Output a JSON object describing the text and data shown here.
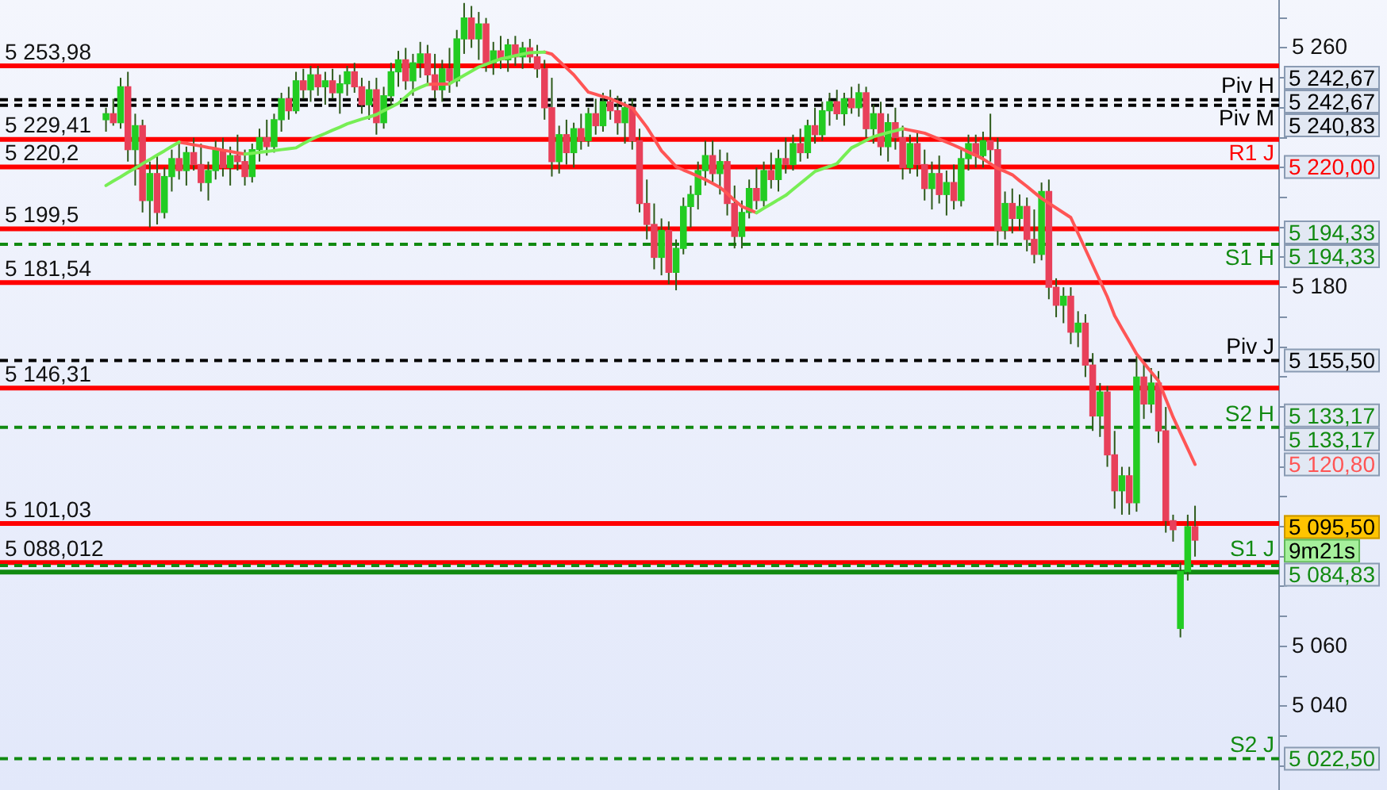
{
  "chart_data": {
    "type": "candlestick",
    "categories": [
      null,
      null,
      null,
      null,
      null,
      null,
      null,
      null,
      null,
      null,
      null,
      null,
      null,
      null,
      null,
      null,
      null,
      null,
      null,
      null,
      null,
      null,
      null,
      null,
      null,
      null,
      null,
      null,
      null,
      null,
      null,
      null,
      null,
      null,
      null,
      null,
      null,
      null,
      null,
      null,
      null,
      null,
      null,
      null,
      null,
      null,
      null,
      null,
      null,
      null,
      null,
      null,
      null,
      null,
      null,
      null,
      null,
      null,
      null,
      null,
      null,
      null,
      null,
      null,
      null,
      null,
      null,
      null,
      null,
      null,
      null,
      null,
      null,
      null,
      null,
      null,
      null,
      null,
      null,
      null,
      null,
      null,
      null,
      null,
      null,
      null,
      null,
      null,
      null,
      null,
      null,
      null,
      null,
      null,
      null,
      null,
      null,
      null,
      null,
      null,
      null,
      null,
      null,
      null,
      null,
      null,
      null,
      null,
      null,
      null,
      null,
      null,
      null,
      null,
      null,
      null,
      null,
      null,
      null,
      null,
      null,
      null,
      null,
      null,
      null,
      null,
      null,
      null,
      null,
      null,
      null,
      null,
      null,
      null,
      null,
      null,
      null,
      null,
      null,
      null,
      null,
      null,
      null,
      null,
      null,
      null,
      null,
      null,
      null,
      null,
      null,
      null,
      null,
      null,
      null,
      null,
      null,
      null,
      null,
      null,
      null,
      null,
      null,
      null,
      null,
      null,
      null,
      null,
      null,
      null,
      null,
      null,
      null,
      null,
      null
    ],
    "color": "#2d5a1a",
    "ohlc": [
      null,
      null,
      null,
      null,
      null,
      null,
      null,
      null,
      null,
      null,
      null,
      null,
      null,
      null,
      [
        5236,
        5240,
        5232,
        5238
      ],
      [
        5238,
        5243,
        5234,
        5235
      ],
      [
        5235,
        5250,
        5233,
        5247
      ],
      [
        5247,
        5252,
        5222,
        5226
      ],
      [
        5226,
        5238,
        5214,
        5234
      ],
      [
        5234,
        5236,
        5205,
        5209
      ],
      [
        5209,
        5222,
        5200,
        5218
      ],
      [
        5218,
        5224,
        5201,
        5205
      ],
      [
        5205,
        5220,
        5203,
        5217
      ],
      [
        5217,
        5226,
        5212,
        5223
      ],
      [
        5223,
        5228,
        5216,
        5219
      ],
      [
        5219,
        5227,
        5214,
        5225
      ],
      [
        5225,
        5230,
        5219,
        5221
      ],
      [
        5221,
        5228,
        5212,
        5215
      ],
      [
        5215,
        5222,
        5209,
        5219
      ],
      [
        5219,
        5229,
        5216,
        5226
      ],
      [
        5226,
        5230,
        5217,
        5220
      ],
      [
        5220,
        5227,
        5214,
        5224
      ],
      [
        5224,
        5231,
        5219,
        5222
      ],
      [
        5222,
        5226,
        5214,
        5217
      ],
      [
        5217,
        5228,
        5215,
        5226
      ],
      [
        5226,
        5233,
        5222,
        5230
      ],
      [
        5230,
        5236,
        5224,
        5227
      ],
      [
        5227,
        5238,
        5225,
        5236
      ],
      [
        5236,
        5245,
        5232,
        5243
      ],
      [
        5243,
        5247,
        5236,
        5239
      ],
      [
        5239,
        5252,
        5238,
        5249
      ],
      [
        5249,
        5253,
        5243,
        5246
      ],
      [
        5246,
        5254,
        5242,
        5251
      ],
      [
        5251,
        5254,
        5244,
        5247
      ],
      [
        5247,
        5252,
        5241,
        5249
      ],
      [
        5249,
        5253,
        5243,
        5245
      ],
      [
        5245,
        5251,
        5238,
        5248
      ],
      [
        5248,
        5254,
        5244,
        5252
      ],
      [
        5252,
        5255,
        5245,
        5247
      ],
      [
        5247,
        5250,
        5238,
        5241
      ],
      [
        5241,
        5249,
        5236,
        5246
      ],
      [
        5246,
        5250,
        5231,
        5235
      ],
      [
        5235,
        5247,
        5233,
        5244
      ],
      [
        5244,
        5255,
        5241,
        5252
      ],
      [
        5252,
        5259,
        5247,
        5256
      ],
      [
        5256,
        5260,
        5246,
        5249
      ],
      [
        5249,
        5258,
        5244,
        5255
      ],
      [
        5255,
        5262,
        5250,
        5258
      ],
      [
        5258,
        5261,
        5248,
        5251
      ],
      [
        5251,
        5258,
        5243,
        5246
      ],
      [
        5246,
        5256,
        5242,
        5253
      ],
      [
        5253,
        5260,
        5245,
        5249
      ],
      [
        5249,
        5266,
        5247,
        5263
      ],
      [
        5263,
        5275,
        5258,
        5270
      ],
      [
        5270,
        5274,
        5260,
        5263
      ],
      [
        5263,
        5272,
        5256,
        5268
      ],
      [
        5268,
        5270,
        5252,
        5255
      ],
      [
        5255,
        5262,
        5251,
        5259
      ],
      [
        5259,
        5264,
        5253,
        5256
      ],
      [
        5256,
        5263,
        5252,
        5261
      ],
      [
        5261,
        5264,
        5254,
        5257
      ],
      [
        5257,
        5262,
        5253,
        5260
      ],
      [
        5260,
        5263,
        5255,
        5257
      ],
      [
        5257,
        5261,
        5250,
        5253
      ],
      [
        5253,
        5256,
        5236,
        5240
      ],
      [
        5240,
        5250,
        5217,
        5222
      ],
      [
        5222,
        5234,
        5218,
        5231
      ],
      [
        5231,
        5236,
        5221,
        5225
      ],
      [
        5225,
        5235,
        5220,
        5233
      ],
      [
        5233,
        5238,
        5226,
        5229
      ],
      [
        5229,
        5240,
        5227,
        5238
      ],
      [
        5238,
        5243,
        5231,
        5234
      ],
      [
        5234,
        5245,
        5232,
        5242
      ],
      [
        5242,
        5246,
        5236,
        5239
      ],
      [
        5239,
        5244,
        5231,
        5235
      ],
      [
        5235,
        5242,
        5228,
        5240
      ],
      [
        5240,
        5243,
        5226,
        5229
      ],
      [
        5229,
        5233,
        5205,
        5208
      ],
      [
        5208,
        5216,
        5196,
        5201
      ],
      [
        5201,
        5208,
        5186,
        5190
      ],
      [
        5190,
        5203,
        5184,
        5199
      ],
      [
        5199,
        5202,
        5181,
        5185
      ],
      [
        5185,
        5196,
        5179,
        5193
      ],
      [
        5193,
        5210,
        5191,
        5207
      ],
      [
        5207,
        5214,
        5200,
        5211
      ],
      [
        5211,
        5222,
        5206,
        5219
      ],
      [
        5219,
        5229,
        5214,
        5224
      ],
      [
        5224,
        5229,
        5215,
        5218
      ],
      [
        5218,
        5226,
        5211,
        5222
      ],
      [
        5222,
        5225,
        5204,
        5208
      ],
      [
        5208,
        5214,
        5193,
        5197
      ],
      [
        5197,
        5209,
        5193,
        5205
      ],
      [
        5205,
        5216,
        5203,
        5213
      ],
      [
        5213,
        5220,
        5206,
        5209
      ],
      [
        5209,
        5222,
        5207,
        5219
      ],
      [
        5219,
        5225,
        5213,
        5216
      ],
      [
        5216,
        5226,
        5212,
        5223
      ],
      [
        5223,
        5230,
        5218,
        5221
      ],
      [
        5221,
        5231,
        5219,
        5228
      ],
      [
        5228,
        5233,
        5222,
        5225
      ],
      [
        5225,
        5236,
        5223,
        5234
      ],
      [
        5234,
        5240,
        5228,
        5231
      ],
      [
        5231,
        5242,
        5229,
        5239
      ],
      [
        5239,
        5245,
        5234,
        5242
      ],
      [
        5242,
        5246,
        5236,
        5238
      ],
      [
        5238,
        5245,
        5234,
        5243
      ],
      [
        5243,
        5247,
        5238,
        5240
      ],
      [
        5240,
        5248,
        5237,
        5245
      ],
      [
        5245,
        5247,
        5230,
        5233
      ],
      [
        5233,
        5241,
        5228,
        5238
      ],
      [
        5238,
        5242,
        5224,
        5227
      ],
      [
        5227,
        5238,
        5222,
        5235
      ],
      [
        5235,
        5240,
        5226,
        5230
      ],
      [
        5230,
        5234,
        5216,
        5220
      ],
      [
        5220,
        5231,
        5218,
        5228
      ],
      [
        5228,
        5232,
        5217,
        5221
      ],
      [
        5221,
        5226,
        5209,
        5213
      ],
      [
        5213,
        5222,
        5206,
        5218
      ],
      [
        5218,
        5224,
        5208,
        5211
      ],
      [
        5211,
        5219,
        5204,
        5215
      ],
      [
        5215,
        5221,
        5206,
        5209
      ],
      [
        5209,
        5226,
        5207,
        5223
      ],
      [
        5223,
        5231,
        5219,
        5228
      ],
      [
        5228,
        5231,
        5220,
        5224
      ],
      [
        5224,
        5232,
        5220,
        5229
      ],
      [
        5229,
        5238,
        5222,
        5226
      ],
      [
        5226,
        5230,
        5194,
        5199
      ],
      [
        5199,
        5212,
        5196,
        5208
      ],
      [
        5208,
        5213,
        5198,
        5203
      ],
      [
        5203,
        5211,
        5199,
        5207
      ],
      [
        5207,
        5210,
        5192,
        5196
      ],
      [
        5196,
        5206,
        5188,
        5191
      ],
      [
        5191,
        5215,
        5189,
        5212
      ],
      [
        5212,
        5216,
        5176,
        5180
      ],
      [
        5180,
        5183,
        5170,
        5174
      ],
      [
        5174,
        5180,
        5168,
        5177
      ],
      [
        5177,
        5180,
        5161,
        5165
      ],
      [
        5165,
        5172,
        5160,
        5168
      ],
      [
        5168,
        5171,
        5150,
        5154
      ],
      [
        5154,
        5158,
        5132,
        5137
      ],
      [
        5137,
        5148,
        5130,
        5145
      ],
      [
        5145,
        5147,
        5120,
        5124
      ],
      [
        5124,
        5132,
        5106,
        5112
      ],
      [
        5112,
        5120,
        5104,
        5117
      ],
      [
        5117,
        5120,
        5104,
        5108
      ],
      [
        5108,
        5157,
        5105,
        5150
      ],
      [
        5150,
        5155,
        5136,
        5141
      ],
      [
        5141,
        5153,
        5138,
        5148
      ],
      [
        5148,
        5152,
        5128,
        5132
      ],
      [
        5132,
        5140,
        5098,
        5102
      ],
      [
        5102,
        5104,
        5095,
        5099
      ],
      [
        5066,
        5088,
        5063,
        5085
      ],
      [
        5085,
        5104,
        5082,
        5100
      ],
      [
        5100,
        5107,
        5090,
        5095.5
      ],
      null,
      null,
      null,
      null,
      null,
      null,
      null,
      null,
      null,
      null,
      null
    ],
    "colors": [
      null,
      null,
      null,
      null,
      null,
      null,
      null,
      null,
      null,
      null,
      null,
      null,
      null,
      null,
      "#22cc22",
      "#e8405a",
      "#22cc22",
      "#e8405a",
      "#22cc22",
      "#e8405a",
      "#22cc22",
      "#e8405a",
      "#22cc22",
      "#22cc22",
      "#e8405a",
      "#22cc22",
      "#e8405a",
      "#e8405a",
      "#22cc22",
      "#22cc22",
      "#e8405a",
      "#22cc22",
      "#e8405a",
      "#e8405a",
      "#22cc22",
      "#22cc22",
      "#e8405a",
      "#22cc22",
      "#22cc22",
      "#e8405a",
      "#22cc22",
      "#e8405a",
      "#22cc22",
      "#e8405a",
      "#22cc22",
      "#e8405a",
      "#22cc22",
      "#22cc22",
      "#e8405a",
      "#e8405a",
      "#22cc22",
      "#e8405a",
      "#22cc22",
      "#22cc22",
      "#22cc22",
      "#e8405a",
      "#22cc22",
      "#22cc22",
      "#e8405a",
      "#e8405a",
      "#22cc22",
      "#e8405a",
      "#22cc22",
      "#22cc22",
      "#e8405a",
      "#22cc22",
      "#e8405a",
      "#22cc22",
      "#e8405a",
      "#22cc22",
      "#e8405a",
      "#22cc22",
      "#e8405a",
      "#e8405a",
      "#e8405a",
      "#e8405a",
      "#22cc22",
      "#e8405a",
      "#22cc22",
      "#e8405a",
      "#22cc22",
      "#e8405a",
      "#22cc22",
      "#e8405a",
      "#e8405a",
      "#22cc22",
      "#e8405a",
      "#e8405a",
      "#e8405a",
      "#e8405a",
      "#22cc22",
      "#e8405a",
      "#22cc22",
      "#22cc22",
      "#22cc22",
      "#22cc22",
      "#22cc22",
      "#e8405a",
      "#22cc22",
      "#e8405a",
      "#e8405a",
      "#22cc22",
      "#22cc22",
      "#e8405a",
      "#22cc22",
      "#e8405a",
      "#22cc22",
      "#e8405a",
      "#22cc22",
      "#e8405a",
      "#22cc22",
      "#e8405a",
      "#22cc22",
      "#22cc22",
      "#e8405a",
      "#22cc22",
      "#e8405a",
      "#22cc22",
      "#e8405a",
      "#22cc22",
      "#e8405a",
      "#22cc22",
      "#e8405a",
      "#e8405a",
      "#22cc22",
      "#e8405a",
      "#e8405a",
      "#22cc22",
      "#e8405a",
      "#22cc22",
      "#e8405a",
      "#22cc22",
      "#22cc22",
      "#e8405a",
      "#22cc22",
      "#e8405a",
      "#e8405a",
      "#22cc22",
      "#e8405a",
      "#22cc22",
      "#e8405a",
      "#e8405a",
      "#22cc22",
      "#e8405a",
      "#e8405a",
      "#22cc22",
      "#e8405a",
      "#22cc22",
      "#e8405a",
      "#e8405a",
      "#22cc22",
      "#e8405a",
      "#e8405a",
      "#22cc22",
      "#e8405a",
      "#22cc22",
      "#e8405a",
      "#22cc22",
      "#e8405a",
      "#e8405a",
      "#e8405a",
      "#22cc22",
      "#22cc22",
      "#e8405a",
      null,
      null,
      null,
      null,
      null,
      null,
      null,
      null,
      null,
      null,
      null
    ],
    "series": [
      {
        "type": "line",
        "color": "#77ee55",
        "values": [
          null,
          null,
          null,
          null,
          null,
          null,
          null,
          null,
          null,
          null,
          null,
          null,
          null,
          null,
          5214.0,
          5215.5,
          5216.9,
          5218.4,
          5219.8,
          5221.3,
          5222.7,
          5224.2,
          5225.6,
          5227.1,
          5228.5,
          null,
          null,
          null,
          null,
          null,
          null,
          null,
          null,
          5224.5,
          5224.8,
          5225.1,
          5225.4,
          5225.7,
          5226.0,
          5226.3,
          5226.6,
          5228.0,
          5229.3,
          5230.4,
          5231.4,
          5232.5,
          5233.5,
          5234.6,
          5235.4,
          5236.2,
          5236.9,
          5237.7,
          5239.0,
          5240.2,
          5241.5,
          5243.6,
          5245.7,
          5246.8,
          5247.8,
          null,
          null,
          5248.0,
          5249.4,
          5250.8,
          5252.2,
          5253.6,
          5254.5,
          5255.4,
          5256.3,
          5256.8,
          5257.4,
          5257.9,
          5258.4,
          5258.5,
          5258.6,
          null,
          null,
          null,
          null,
          null,
          null,
          null,
          null,
          null,
          null,
          null,
          null,
          null,
          null,
          null,
          null,
          null,
          null,
          null,
          null,
          null,
          null,
          null,
          null,
          null,
          null,
          null,
          null,
          5204.9,
          5206.4,
          5207.8,
          5209.3,
          5210.7,
          5212.7,
          5214.7,
          5216.7,
          5218.7,
          5219.6,
          5220.4,
          5221.3,
          5224.0,
          5226.6,
          5227.8,
          5229.1,
          5230.3,
          5231.0,
          5231.7,
          5232.3,
          5233.0,
          null,
          null,
          null,
          null,
          null,
          null,
          null,
          null,
          null,
          null,
          null,
          null,
          null,
          null,
          null,
          null,
          null,
          null,
          null,
          null,
          null,
          null,
          null,
          null,
          null,
          null,
          null,
          null,
          null,
          null,
          null,
          null,
          null,
          null,
          null,
          null,
          null,
          null,
          null,
          null,
          null,
          null,
          null,
          null,
          null,
          null,
          null,
          null,
          null,
          null,
          null
        ]
      },
      {
        "type": "line",
        "color": "#ff5555",
        "values": [
          null,
          null,
          null,
          null,
          null,
          null,
          null,
          null,
          null,
          null,
          null,
          null,
          null,
          null,
          null,
          null,
          null,
          null,
          null,
          null,
          null,
          null,
          null,
          null,
          5228.5,
          5228.1,
          5227.6,
          5227.2,
          5226.7,
          5226.3,
          5225.8,
          5225.4,
          5224.9,
          5224.5,
          null,
          null,
          null,
          null,
          null,
          null,
          null,
          null,
          null,
          null,
          null,
          null,
          null,
          null,
          null,
          null,
          null,
          null,
          null,
          null,
          null,
          null,
          null,
          null,
          5247.8,
          5247.9,
          5247.9,
          5248.0,
          null,
          null,
          null,
          null,
          null,
          null,
          null,
          null,
          null,
          null,
          null,
          null,
          5258.6,
          5257.9,
          5255.6,
          5253.3,
          5251.0,
          5248.1,
          5245.2,
          5244.5,
          5243.7,
          5243.0,
          5242.0,
          5240.9,
          5239.9,
          5236.7,
          5233.5,
          5229.6,
          5225.6,
          5223.0,
          5220.3,
          5219.2,
          5218.2,
          5217.1,
          5216.0,
          5214.7,
          5213.4,
          5211.3,
          5209.1,
          5207.0,
          5206.0,
          5204.9,
          null,
          null,
          null,
          null,
          null,
          null,
          null,
          null,
          null,
          null,
          null,
          null,
          null,
          null,
          null,
          null,
          null,
          null,
          null,
          5233.0,
          5232.5,
          5232.0,
          5231.5,
          5230.5,
          5229.5,
          5228.5,
          5227.5,
          5226.4,
          5225.2,
          5224.1,
          5222.9,
          5221.3,
          5219.7,
          5218.7,
          5217.6,
          5215.6,
          5213.7,
          5211.7,
          5209.7,
          5208.1,
          5206.5,
          5204.9,
          5203.3,
          5198.0,
          5192.7,
          5187.4,
          5182.1,
          5176.8,
          5170.5,
          5166.2,
          5162.0,
          5157.7,
          5154.7,
          5151.7,
          5148.7,
          5142.7,
          5136.6,
          5131.3,
          5126.1,
          5120.8,
          null,
          null,
          null,
          null,
          null,
          null,
          null,
          null,
          null,
          null,
          null
        ]
      }
    ],
    "ylim": [
      5012,
      5276
    ],
    "yticks": [
      {
        "value": 5020,
        "label": null
      },
      {
        "value": 5030,
        "label": null
      },
      {
        "value": 5040,
        "label": "5 040"
      },
      {
        "value": 5050,
        "label": null
      },
      {
        "value": 5060,
        "label": "5 060"
      },
      {
        "value": 5070,
        "label": null
      },
      {
        "value": 5080,
        "label": null
      },
      {
        "value": 5090,
        "label": null
      },
      {
        "value": 5100,
        "label": null
      },
      {
        "value": 5110,
        "label": null
      },
      {
        "value": 5120,
        "label": null
      },
      {
        "value": 5130,
        "label": null
      },
      {
        "value": 5140,
        "label": null
      },
      {
        "value": 5150,
        "label": null
      },
      {
        "value": 5160,
        "label": null
      },
      {
        "value": 5170,
        "label": null
      },
      {
        "value": 5180,
        "label": "5 180"
      },
      {
        "value": 5190,
        "label": null
      },
      {
        "value": 5200,
        "label": null
      },
      {
        "value": 5210,
        "label": null
      },
      {
        "value": 5220,
        "label": null
      },
      {
        "value": 5230,
        "label": null
      },
      {
        "value": 5240,
        "label": null
      },
      {
        "value": 5250,
        "label": null
      },
      {
        "value": 5260,
        "label": "5 260"
      },
      {
        "value": 5270,
        "label": null
      }
    ],
    "tick_labels": "y",
    "ref_lines": [
      {
        "axis": "y",
        "value": 5253.98,
        "label": "5 253,98",
        "color": "#ff0000",
        "line_style": "solid"
      },
      {
        "axis": "y",
        "value": 5242.67,
        "label": "Piv H",
        "color": "#000000",
        "line_style": "dashed"
      },
      {
        "axis": "y",
        "value": 5240.83,
        "label": "Piv M",
        "color": "#000000",
        "line_style": "dashed"
      },
      {
        "axis": "y",
        "value": 5229.41,
        "label": "5 229,41",
        "color": "#ff0000",
        "line_style": "solid"
      },
      {
        "axis": "y",
        "value": 5220.2,
        "label": "5 220,2",
        "color": "#ff0000",
        "line_style": "solid"
      },
      {
        "axis": "y",
        "value": 5199.5,
        "label": "5 199,5",
        "color": "#ff0000",
        "line_style": "solid"
      },
      {
        "axis": "y",
        "value": 5194.33,
        "label": "S1 H",
        "color": "#118a11",
        "line_style": "dashed"
      },
      {
        "axis": "y",
        "value": 5181.54,
        "label": "5 181,54",
        "color": "#ff0000",
        "line_style": "solid"
      },
      {
        "axis": "y",
        "value": 5155.5,
        "label": "Piv J",
        "color": "#000000",
        "line_style": "dashed"
      },
      {
        "axis": "y",
        "value": 5146.31,
        "label": "5 146,31",
        "color": "#ff0000",
        "line_style": "solid"
      },
      {
        "axis": "y",
        "value": 5133.17,
        "label": "S2 H",
        "color": "#118a11",
        "line_style": "dashed"
      },
      {
        "axis": "y",
        "value": 5101.03,
        "label": "5 101,03",
        "color": "#ff0000",
        "line_style": "solid"
      },
      {
        "axis": "y",
        "value": 5088.012,
        "label": "5 088,012",
        "color": "#ff0000",
        "line_style": "solid"
      },
      {
        "axis": "y",
        "value": 5087,
        "label": "S1 J",
        "color": "#118a11",
        "line_style": "dashed"
      },
      {
        "axis": "y",
        "value": 5084.83,
        "color": "#118a11",
        "line_style": "solid"
      },
      {
        "axis": "y",
        "value": 5022.5,
        "label": "S2 J",
        "color": "#118a11",
        "line_style": "dashed"
      }
    ],
    "annotations": [
      "R1 J",
      "5 242,67",
      "5 242,67",
      "5 240,83",
      "5 220,00",
      "5 194,33",
      "5 194,33",
      "5 155,50",
      "5 133,17",
      "5 133,17",
      "5 120,80",
      "5 095,50",
      "9m21s",
      "5 084,83",
      "5 022,50"
    ]
  }
}
